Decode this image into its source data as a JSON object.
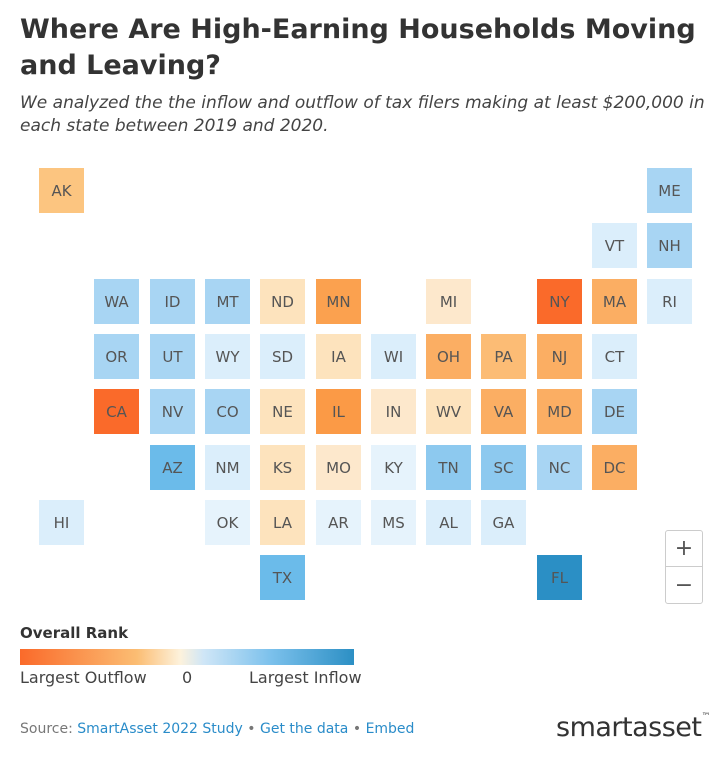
{
  "header": {
    "title": "Where Are High-Earning Households Moving and Leaving?",
    "subtitle": "We analyzed the the inflow and outflow of tax filers making at least $200,000 in each state between 2019 and 2020."
  },
  "colors": {
    "outflow_strong": "#fa6a2a",
    "outflow_medium": "#fba14f",
    "outflow_light": "#fcc580",
    "outflow_pale": "#fde3bd",
    "inflow_pale": "#dbeefb",
    "inflow_light": "#a8d5f3",
    "inflow_medium": "#6bbbea",
    "inflow_strong": "#2b8fc5"
  },
  "map": {
    "states": [
      {
        "abbr": "AK",
        "col": 0,
        "row": 0,
        "color": "#fcc580"
      },
      {
        "abbr": "ME",
        "col": 11,
        "row": 0,
        "color": "#a8d5f3"
      },
      {
        "abbr": "VT",
        "col": 10,
        "row": 1,
        "color": "#dbeefb"
      },
      {
        "abbr": "NH",
        "col": 11,
        "row": 1,
        "color": "#a8d5f3"
      },
      {
        "abbr": "WA",
        "col": 1,
        "row": 2,
        "color": "#a8d5f3"
      },
      {
        "abbr": "ID",
        "col": 2,
        "row": 2,
        "color": "#a8d5f3"
      },
      {
        "abbr": "MT",
        "col": 3,
        "row": 2,
        "color": "#a8d5f3"
      },
      {
        "abbr": "ND",
        "col": 4,
        "row": 2,
        "color": "#fde3bd"
      },
      {
        "abbr": "MN",
        "col": 5,
        "row": 2,
        "color": "#fba14f"
      },
      {
        "abbr": "MI",
        "col": 7,
        "row": 2,
        "color": "#fde8cc"
      },
      {
        "abbr": "NY",
        "col": 9,
        "row": 2,
        "color": "#fa6a2a"
      },
      {
        "abbr": "MA",
        "col": 10,
        "row": 2,
        "color": "#fbae63"
      },
      {
        "abbr": "RI",
        "col": 11,
        "row": 2,
        "color": "#dbeefb"
      },
      {
        "abbr": "OR",
        "col": 1,
        "row": 3,
        "color": "#a8d5f3"
      },
      {
        "abbr": "UT",
        "col": 2,
        "row": 3,
        "color": "#a8d5f3"
      },
      {
        "abbr": "WY",
        "col": 3,
        "row": 3,
        "color": "#dbeefb"
      },
      {
        "abbr": "SD",
        "col": 4,
        "row": 3,
        "color": "#dbeefb"
      },
      {
        "abbr": "IA",
        "col": 5,
        "row": 3,
        "color": "#fde3bd"
      },
      {
        "abbr": "WI",
        "col": 6,
        "row": 3,
        "color": "#dbeefb"
      },
      {
        "abbr": "OH",
        "col": 7,
        "row": 3,
        "color": "#fbae63"
      },
      {
        "abbr": "PA",
        "col": 8,
        "row": 3,
        "color": "#fcbc75"
      },
      {
        "abbr": "NJ",
        "col": 9,
        "row": 3,
        "color": "#fbae63"
      },
      {
        "abbr": "CT",
        "col": 10,
        "row": 3,
        "color": "#dbeefb"
      },
      {
        "abbr": "CA",
        "col": 1,
        "row": 4,
        "color": "#fa6a2a"
      },
      {
        "abbr": "NV",
        "col": 2,
        "row": 4,
        "color": "#a8d5f3"
      },
      {
        "abbr": "CO",
        "col": 3,
        "row": 4,
        "color": "#a8d5f3"
      },
      {
        "abbr": "NE",
        "col": 4,
        "row": 4,
        "color": "#fde3bd"
      },
      {
        "abbr": "IL",
        "col": 5,
        "row": 4,
        "color": "#fb9a46"
      },
      {
        "abbr": "IN",
        "col": 6,
        "row": 4,
        "color": "#fde8cc"
      },
      {
        "abbr": "WV",
        "col": 7,
        "row": 4,
        "color": "#fde3bd"
      },
      {
        "abbr": "VA",
        "col": 8,
        "row": 4,
        "color": "#fbae63"
      },
      {
        "abbr": "MD",
        "col": 9,
        "row": 4,
        "color": "#fbae63"
      },
      {
        "abbr": "DE",
        "col": 10,
        "row": 4,
        "color": "#a8d5f3"
      },
      {
        "abbr": "AZ",
        "col": 2,
        "row": 5,
        "color": "#6bbbea"
      },
      {
        "abbr": "NM",
        "col": 3,
        "row": 5,
        "color": "#dbeefb"
      },
      {
        "abbr": "KS",
        "col": 4,
        "row": 5,
        "color": "#fde3bd"
      },
      {
        "abbr": "MO",
        "col": 5,
        "row": 5,
        "color": "#fde8cc"
      },
      {
        "abbr": "KY",
        "col": 6,
        "row": 5,
        "color": "#e6f3fc"
      },
      {
        "abbr": "TN",
        "col": 7,
        "row": 5,
        "color": "#8dc9ef"
      },
      {
        "abbr": "SC",
        "col": 8,
        "row": 5,
        "color": "#8dc9ef"
      },
      {
        "abbr": "NC",
        "col": 9,
        "row": 5,
        "color": "#a8d5f3"
      },
      {
        "abbr": "DC",
        "col": 10,
        "row": 5,
        "color": "#fbae63"
      },
      {
        "abbr": "HI",
        "col": 0,
        "row": 6,
        "color": "#dbeefb"
      },
      {
        "abbr": "OK",
        "col": 3,
        "row": 6,
        "color": "#e6f3fc"
      },
      {
        "abbr": "LA",
        "col": 4,
        "row": 6,
        "color": "#fde3bd"
      },
      {
        "abbr": "AR",
        "col": 5,
        "row": 6,
        "color": "#e6f3fc"
      },
      {
        "abbr": "MS",
        "col": 6,
        "row": 6,
        "color": "#e6f3fc"
      },
      {
        "abbr": "AL",
        "col": 7,
        "row": 6,
        "color": "#dbeefb"
      },
      {
        "abbr": "GA",
        "col": 8,
        "row": 6,
        "color": "#dbeefb"
      },
      {
        "abbr": "TX",
        "col": 4,
        "row": 7,
        "color": "#6bbbea"
      },
      {
        "abbr": "FL",
        "col": 9,
        "row": 7,
        "color": "#2b8fc5"
      }
    ]
  },
  "zoom": {
    "in_label": "+",
    "out_label": "−"
  },
  "legend": {
    "title": "Overall Rank",
    "left_label": "Largest Outflow",
    "mid_label": "0",
    "right_label": "Largest Inflow"
  },
  "footer": {
    "source_prefix": "Source: ",
    "source_link": "SmartAsset 2022 Study",
    "separator": " • ",
    "data_link": "Get the data",
    "embed_link": "Embed"
  },
  "logo": {
    "text": "smartasset",
    "tm": "™"
  }
}
